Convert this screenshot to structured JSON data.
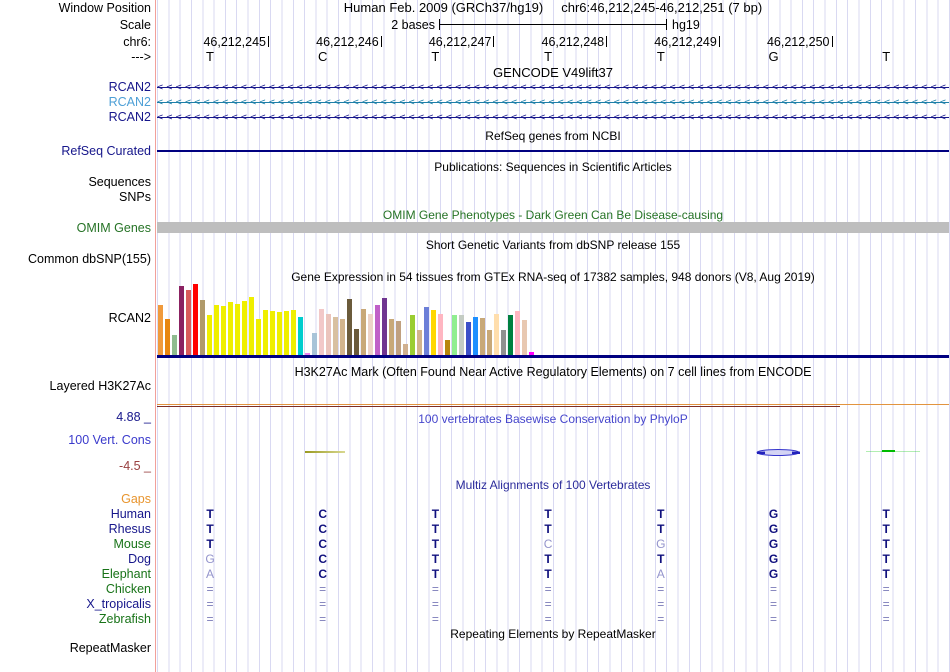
{
  "header": {
    "assembly": "Human Feb. 2009 (GRCh37/hg19)",
    "position": "chr6:46,212,245-46,212,251 (7 bp)"
  },
  "labels": {
    "window_position": "Window Position",
    "scale": "Scale",
    "chrom": "chr6:",
    "strand": "--->",
    "refseq_curated": "RefSeq Curated",
    "sequences": "Sequences",
    "snps": "SNPs",
    "omim_genes": "OMIM Genes",
    "common_dbsnp": "Common dbSNP(155)",
    "gtex_gene": "RCAN2",
    "layered_h3k27ac": "Layered H3K27Ac",
    "phylop_max": "4.88 _",
    "cons_label": "100 Vert. Cons",
    "phylop_min": "-4.5 _",
    "repeatmasker": "RepeatMasker"
  },
  "scale": {
    "text": "2 bases",
    "tag": "hg19"
  },
  "ruler": {
    "ticks": [
      "46,212,245",
      "46,212,246",
      "46,212,247",
      "46,212,248",
      "46,212,249",
      "46,212,250"
    ]
  },
  "sequence": {
    "bases": [
      "T",
      "C",
      "T",
      "T",
      "T",
      "G",
      "T"
    ]
  },
  "titles": {
    "gencode": "GENCODE V49lift37",
    "refseq": "RefSeq genes from NCBI",
    "publications": "Publications: Sequences in Scientific Articles",
    "omim": "OMIM Gene Phenotypes - Dark Green Can Be Disease-causing",
    "dbsnp": "Short Genetic Variants from dbSNP release 155",
    "gtex": "Gene Expression in 54 tissues from GTEx RNA-seq of 17382 samples, 948 donors (V8, Aug 2019)",
    "h3k27ac": "H3K27Ac Mark (Often Found Near Active Regulatory Elements) on 7 cell lines from ENCODE",
    "phylop": "100 vertebrates Basewise Conservation by PhyloP",
    "multiz": "Multiz Alignments of 100 Vertebrates",
    "repeatmasker": "Repeating Elements by RepeatMasker"
  },
  "gencode": {
    "arrow_char": "<",
    "transcripts": [
      {
        "label": "RCAN2",
        "label_color": "#16168B",
        "arrow_color": "#16168B"
      },
      {
        "label": "RCAN2",
        "label_color": "#4D9FD6",
        "arrow_color": "#1D7FA8"
      },
      {
        "label": "RCAN2",
        "label_color": "#16168B",
        "arrow_color": "#16168B"
      }
    ]
  },
  "track_colors": {
    "refseq_line": "#000080",
    "omim_bar": "#BEBEBE",
    "gtex_baseline": "#000080",
    "h3k27ac_orange": "#E2943F",
    "h3k27ac_maroon": "#7E2D26",
    "phylop_olive": "#9A9A20",
    "phylop_blue": "#3535CC",
    "phylop_green": "#00BB00",
    "guideline": "#D9D9F2",
    "label_separator": "#F2A09A"
  },
  "chart_data": {
    "type": "bar",
    "title": "Gene Expression in 54 tissues from GTEx RNA-seq of 17382 samples, 948 donors (V8, Aug 2019)",
    "gene": "RCAN2",
    "note": "GTEx tissue bars; tissue names not rendered on screen, values are bar heights in screen pixels",
    "ylim": [
      0,
      72
    ],
    "values": [
      50,
      36,
      20,
      69,
      65,
      71,
      55,
      40,
      50,
      49,
      53,
      51,
      54,
      58,
      36,
      45,
      44,
      43,
      44,
      45,
      38,
      2,
      22,
      46,
      41,
      38,
      36,
      56,
      26,
      46,
      41,
      50,
      57,
      36,
      34,
      11,
      40,
      25,
      48,
      45,
      41,
      15,
      40,
      40,
      33,
      38,
      37,
      25,
      41,
      25,
      40,
      44,
      35,
      3
    ],
    "colors": [
      "#F09A3C",
      "#E8860F",
      "#8FBC8F",
      "#8B2262",
      "#D95C5C",
      "#FF0000",
      "#B09A6A",
      "#EFEF00",
      "#EFEF00",
      "#EFEF00",
      "#EFEF00",
      "#EFEF00",
      "#EFEF00",
      "#EFEF00",
      "#EFEF00",
      "#EFEF00",
      "#EFEF00",
      "#EFEF00",
      "#EFEF00",
      "#EFEF00",
      "#00CDCD",
      "#EE82EE",
      "#A8C4D8",
      "#F2C8C8",
      "#EBC4BC",
      "#D8C0A0",
      "#D2B48C",
      "#6B5B3B",
      "#6B5B3B",
      "#C8A878",
      "#EDD3C8",
      "#C060C8",
      "#703590",
      "#C8A878",
      "#C0A080",
      "#D0B090",
      "#9ACD32",
      "#D2B48C",
      "#6C7FD8",
      "#FFD700",
      "#FFB6C1",
      "#B8860B",
      "#90EE90",
      "#C4CCC4",
      "#3C50C8",
      "#1E90FF",
      "#C8A878",
      "#C8A878",
      "#FFDEAD",
      "#909090",
      "#008040",
      "#FFB6C1",
      "#E8C8B0",
      "#FF00FF"
    ]
  },
  "multiz": {
    "gaps_label": "Gaps",
    "rows": [
      {
        "name": "Human",
        "name_color": "#16168B",
        "cells": "TCTTTGT"
      },
      {
        "name": "Rhesus",
        "name_color": "#16168B",
        "cells": "TCTTTGT"
      },
      {
        "name": "Mouse",
        "name_color": "#187318",
        "cells": "TCTcgGT"
      },
      {
        "name": "Dog",
        "name_color": "#16168B",
        "cells": "gCTTTGT"
      },
      {
        "name": "Elephant",
        "name_color": "#187318",
        "cells": "aCTTaGT"
      },
      {
        "name": "Chicken",
        "name_color": "#187318",
        "cells": "======="
      },
      {
        "name": "X_tropicalis",
        "name_color": "#16168B",
        "cells": "======="
      },
      {
        "name": "Zebrafish",
        "name_color": "#187318",
        "cells": "======="
      }
    ]
  }
}
